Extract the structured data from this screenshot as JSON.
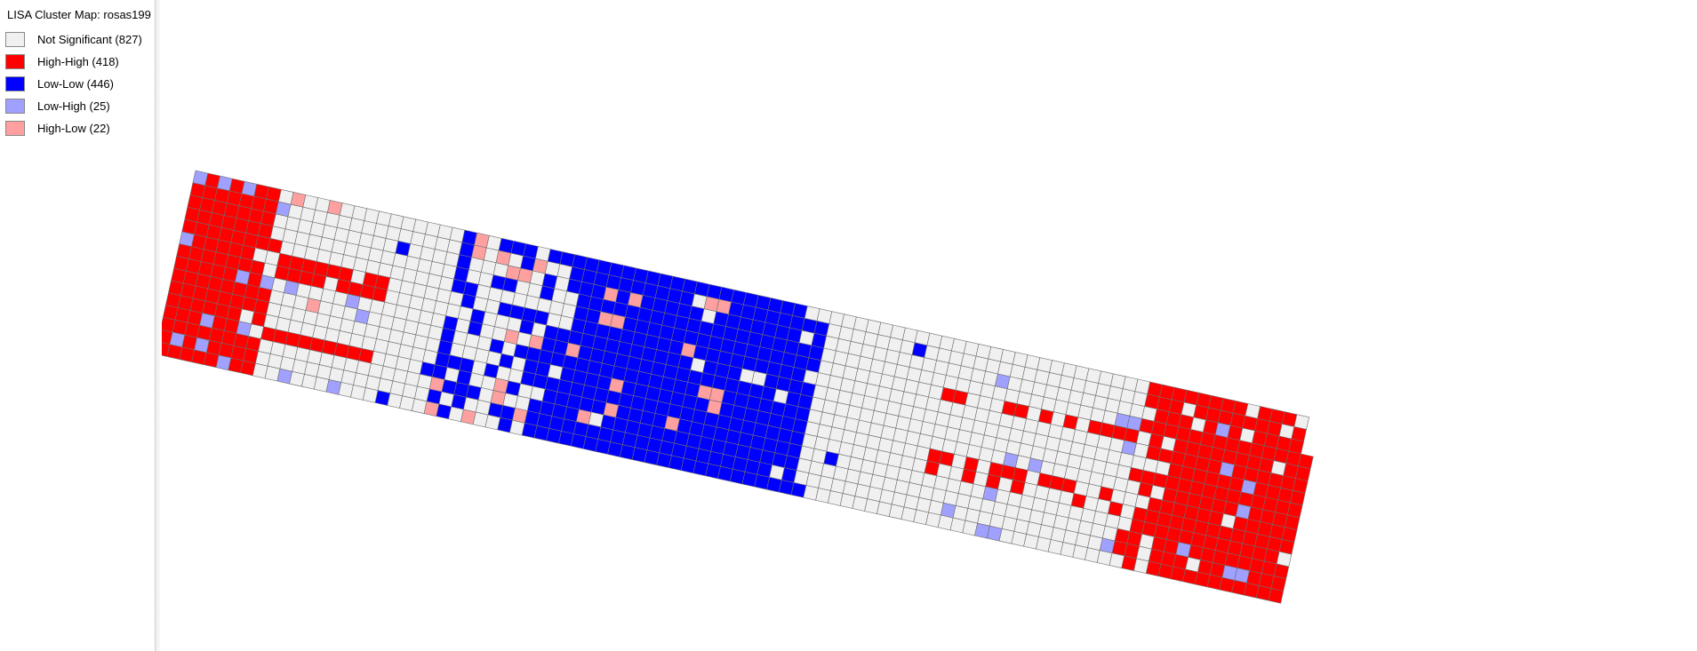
{
  "legend": {
    "title": "LISA Cluster Map: rosas199",
    "items": [
      {
        "label": "Not Significant (827)",
        "category": "not_significant",
        "count": 827,
        "color": "#f0f0f0"
      },
      {
        "label": "High-High (418)",
        "category": "high_high",
        "count": 418,
        "color": "#ff0000"
      },
      {
        "label": "Low-Low (446)",
        "category": "low_low",
        "count": 446,
        "color": "#0000ff"
      },
      {
        "label": "Low-High (25)",
        "category": "low_high",
        "count": 25,
        "color": "#a0a0ff"
      },
      {
        "label": "High-Low (22)",
        "category": "high_low",
        "count": 22,
        "color": "#ffa0a0"
      }
    ]
  },
  "map": {
    "layer": "rosas199",
    "map_type": "LISA cluster map",
    "grid_outline_color": "#6e6e6e",
    "region_summary": [
      "High-High cluster at west end",
      "Low-Low cluster in centre-west",
      "High-High cluster at east end",
      "Not Significant cells fill the remainder"
    ]
  }
}
